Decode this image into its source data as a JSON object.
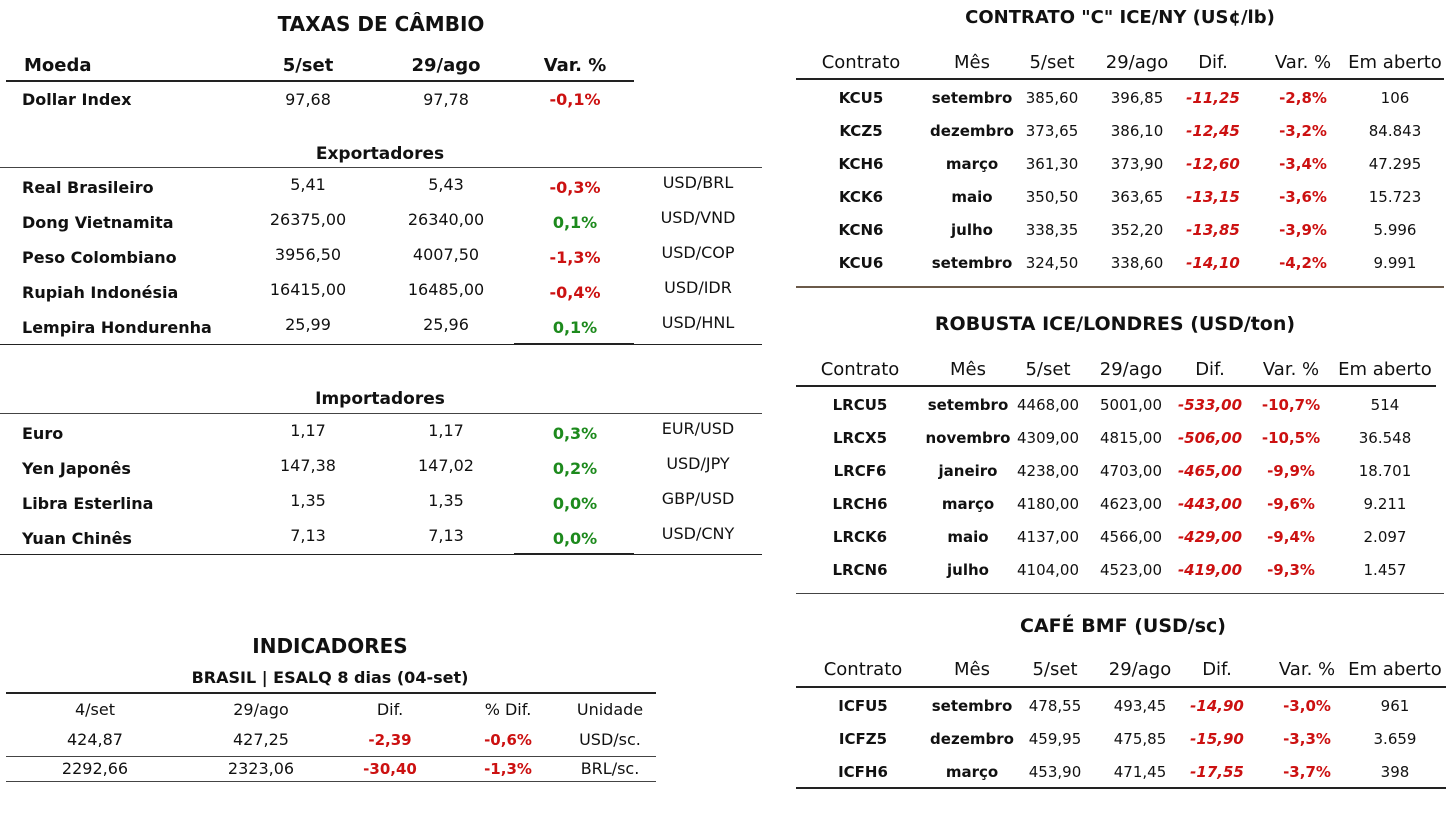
{
  "fx": {
    "title": "TAXAS DE CÂMBIO",
    "headers": [
      "Moeda",
      "5/set",
      "29/ago",
      "Var. %"
    ],
    "dollar_index": {
      "name": "Dollar Index",
      "cur": "97,68",
      "prev": "97,78",
      "var": "-0,1%"
    },
    "exporters_label": "Exportadores",
    "exporters": [
      {
        "name": "Real Brasileiro",
        "cur": "5,41",
        "prev": "5,43",
        "var": "-0,3%",
        "pair": "USD/BRL"
      },
      {
        "name": "Dong Vietnamita",
        "cur": "26375,00",
        "prev": "26340,00",
        "var": "0,1%",
        "pair": "USD/VND"
      },
      {
        "name": "Peso Colombiano",
        "cur": "3956,50",
        "prev": "4007,50",
        "var": "-1,3%",
        "pair": "USD/COP"
      },
      {
        "name": "Rupiah Indonésia",
        "cur": "16415,00",
        "prev": "16485,00",
        "var": "-0,4%",
        "pair": "USD/IDR"
      },
      {
        "name": "Lempira Hondurenha",
        "cur": "25,99",
        "prev": "25,96",
        "var": "0,1%",
        "pair": "USD/HNL"
      }
    ],
    "importers_label": "Importadores",
    "importers": [
      {
        "name": "Euro",
        "cur": "1,17",
        "prev": "1,17",
        "var": "0,3%",
        "pair": "EUR/USD"
      },
      {
        "name": "Yen Japonês",
        "cur": "147,38",
        "prev": "147,02",
        "var": "0,2%",
        "pair": "USD/JPY"
      },
      {
        "name": "Libra Esterlina",
        "cur": "1,35",
        "prev": "1,35",
        "var": "0,0%",
        "pair": "GBP/USD"
      },
      {
        "name": "Yuan Chinês",
        "cur": "7,13",
        "prev": "7,13",
        "var": "0,0%",
        "pair": "USD/CNY"
      }
    ]
  },
  "indicators": {
    "title": "INDICADORES",
    "subtitle": "BRASIL | ESALQ 8 dias (04-set)",
    "headers": [
      "4/set",
      "29/ago",
      "Dif.",
      "% Dif.",
      "Unidade"
    ],
    "rows": [
      [
        "424,87",
        "427,25",
        "-2,39",
        "-0,6%",
        "USD/sc."
      ],
      [
        "2292,66",
        "2323,06",
        "-30,40",
        "-1,3%",
        "BRL/sc."
      ]
    ]
  },
  "arabica": {
    "title": "CONTRATO \"C\" ICE/NY (US¢/lb)",
    "headers": [
      "Contrato",
      "Mês",
      "5/set",
      "29/ago",
      "Dif.",
      "Var. %",
      "Em aberto"
    ],
    "rows": [
      [
        "KCU5",
        "setembro",
        "385,60",
        "396,85",
        "-11,25",
        "-2,8%",
        "106"
      ],
      [
        "KCZ5",
        "dezembro",
        "373,65",
        "386,10",
        "-12,45",
        "-3,2%",
        "84.843"
      ],
      [
        "KCH6",
        "março",
        "361,30",
        "373,90",
        "-12,60",
        "-3,4%",
        "47.295"
      ],
      [
        "KCK6",
        "maio",
        "350,50",
        "363,65",
        "-13,15",
        "-3,6%",
        "15.723"
      ],
      [
        "KCN6",
        "julho",
        "338,35",
        "352,20",
        "-13,85",
        "-3,9%",
        "5.996"
      ],
      [
        "KCU6",
        "setembro",
        "324,50",
        "338,60",
        "-14,10",
        "-4,2%",
        "9.991"
      ]
    ]
  },
  "robusta": {
    "title": "ROBUSTA ICE/LONDRES (USD/ton)",
    "headers": [
      "Contrato",
      "Mês",
      "5/set",
      "29/ago",
      "Dif.",
      "Var. %",
      "Em aberto"
    ],
    "rows": [
      [
        "LRCU5",
        "setembro",
        "4468,00",
        "5001,00",
        "-533,00",
        "-10,7%",
        "514"
      ],
      [
        "LRCX5",
        "novembro",
        "4309,00",
        "4815,00",
        "-506,00",
        "-10,5%",
        "36.548"
      ],
      [
        "LRCF6",
        "janeiro",
        "4238,00",
        "4703,00",
        "-465,00",
        "-9,9%",
        "18.701"
      ],
      [
        "LRCH6",
        "março",
        "4180,00",
        "4623,00",
        "-443,00",
        "-9,6%",
        "9.211"
      ],
      [
        "LRCK6",
        "maio",
        "4137,00",
        "4566,00",
        "-429,00",
        "-9,4%",
        "2.097"
      ],
      [
        "LRCN6",
        "julho",
        "4104,00",
        "4523,00",
        "-419,00",
        "-9,3%",
        "1.457"
      ]
    ]
  },
  "bmf": {
    "title": "CAFÉ BMF (USD/sc)",
    "headers": [
      "Contrato",
      "Mês",
      "5/set",
      "29/ago",
      "Dif.",
      "Var. %",
      "Em aberto"
    ],
    "rows": [
      [
        "ICFU5",
        "setembro",
        "478,55",
        "493,45",
        "-14,90",
        "-3,0%",
        "961"
      ],
      [
        "ICFZ5",
        "dezembro",
        "459,95",
        "475,85",
        "-15,90",
        "-3,3%",
        "3.659"
      ],
      [
        "ICFH6",
        "março",
        "453,90",
        "471,45",
        "-17,55",
        "-3,7%",
        "398"
      ]
    ]
  },
  "colors": {
    "negative": "#cc1111",
    "positive": "#1d8a1d"
  }
}
